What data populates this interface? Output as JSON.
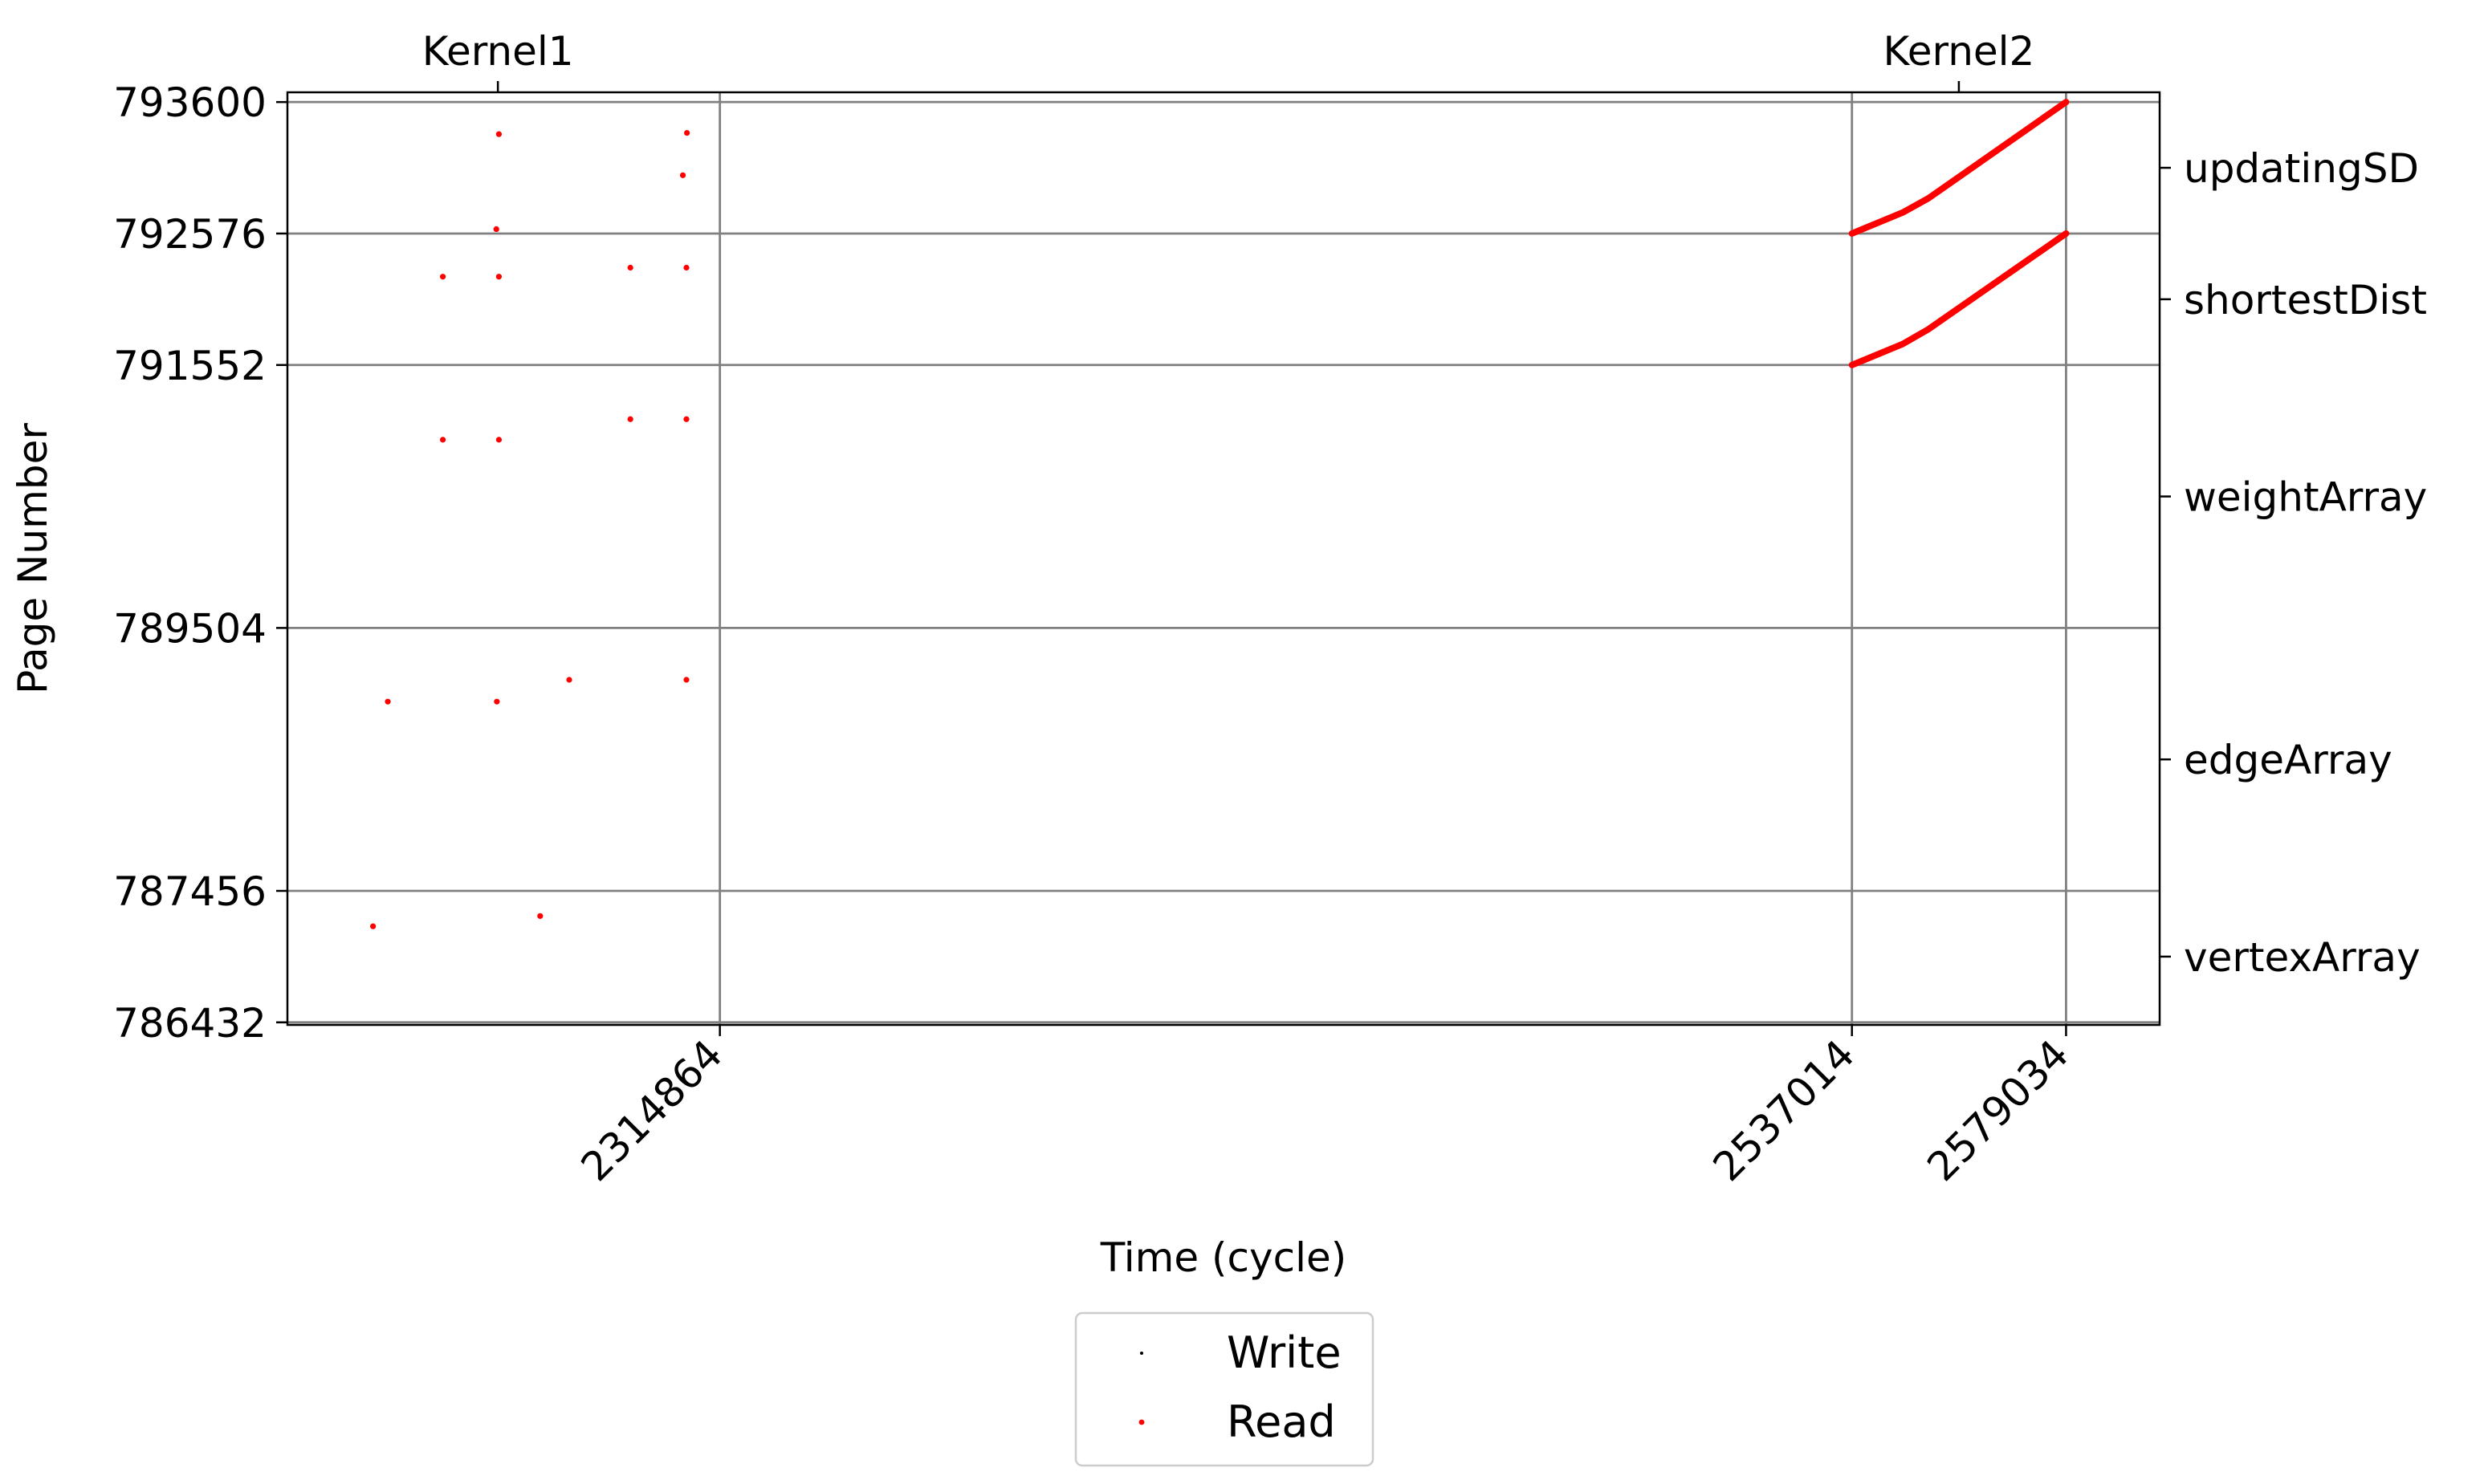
{
  "chart_data": {
    "type": "scatter",
    "xlabel": "Time (cycle)",
    "ylabel": "Page Number",
    "xlim": [
      2230000,
      2597400
    ],
    "ylim": [
      786412,
      793676
    ],
    "x_ticks": [
      2314864,
      2537014,
      2579034
    ],
    "y_ticks": [
      786432,
      787456,
      789504,
      791552,
      792576,
      793600
    ],
    "grid": true,
    "top_axis": {
      "ticks": [
        {
          "label": "Kernel1",
          "x": 2271300
        },
        {
          "label": "Kernel2",
          "x": 2558000
        }
      ]
    },
    "right_axis": {
      "ticks": [
        {
          "label": "updatingSD",
          "y": 793088
        },
        {
          "label": "shortestDist",
          "y": 792064
        },
        {
          "label": "weightArray",
          "y": 790528
        },
        {
          "label": "edgeArray",
          "y": 788480
        },
        {
          "label": "vertexArray",
          "y": 786944
        }
      ]
    },
    "legend": {
      "placement": "below-center",
      "entries": [
        {
          "label": "Write",
          "color": "#000000"
        },
        {
          "label": "Read",
          "color": "#ff0000"
        }
      ]
    },
    "series": [
      {
        "name": "Write",
        "color": "#000000",
        "points": []
      },
      {
        "name": "Read",
        "color": "#ff0000",
        "points": [
          [
            2271500,
            793350
          ],
          [
            2308400,
            793360
          ],
          [
            2307600,
            793030
          ],
          [
            2271000,
            792610
          ],
          [
            2260500,
            792240
          ],
          [
            2271500,
            792240
          ],
          [
            2297300,
            792310
          ],
          [
            2308300,
            792310
          ],
          [
            2260500,
            790970
          ],
          [
            2271500,
            790970
          ],
          [
            2297300,
            791130
          ],
          [
            2308300,
            791130
          ],
          [
            2249700,
            788930
          ],
          [
            2271100,
            788930
          ],
          [
            2285300,
            789100
          ],
          [
            2308300,
            789100
          ],
          [
            2246800,
            787180
          ],
          [
            2279600,
            787260
          ]
        ],
        "lines": [
          [
            [
              2537014,
              792576
            ],
            [
              2547000,
              792740
            ],
            [
              2552000,
              792850
            ],
            [
              2579034,
              793600
            ]
          ],
          [
            [
              2537014,
              791552
            ],
            [
              2547000,
              791716
            ],
            [
              2552000,
              791830
            ],
            [
              2579034,
              792576
            ]
          ]
        ]
      }
    ]
  }
}
